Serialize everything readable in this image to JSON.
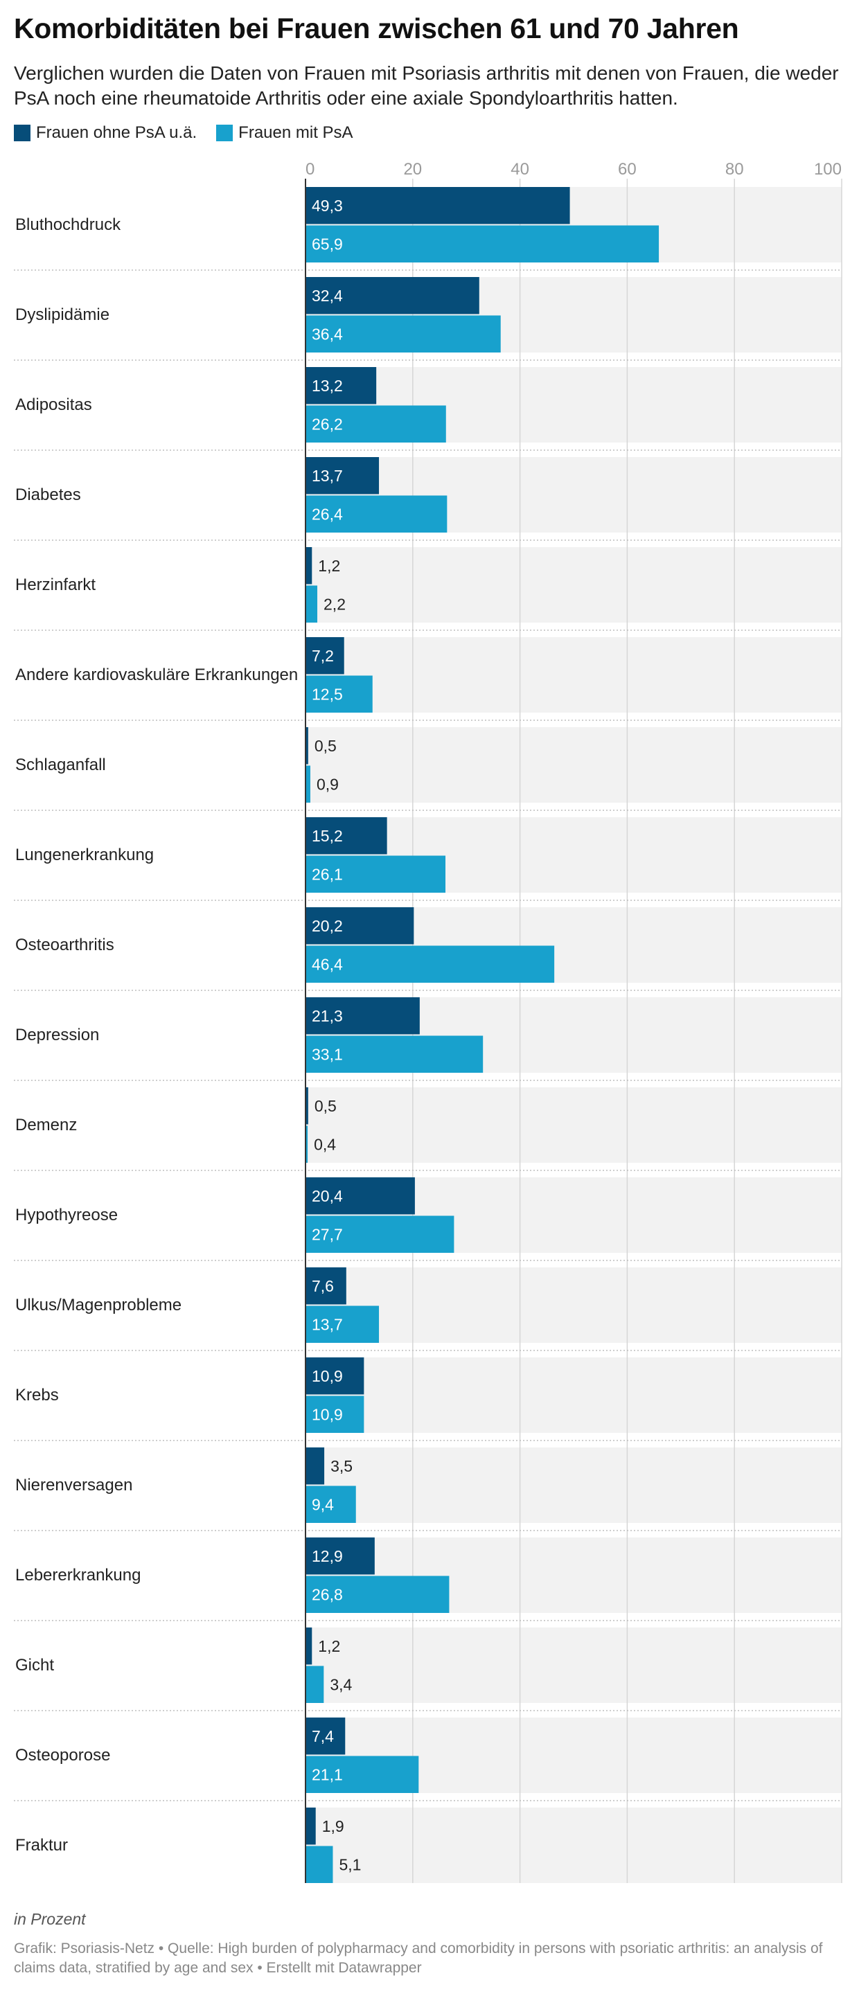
{
  "title": "Komorbiditäten bei Frauen zwischen 61 und 70 Jahren",
  "subtitle": "Verglichen wurden die Daten von Frauen mit Psoriasis arthritis mit denen von Frauen, die weder PsA noch eine rheumatoide Arthritis oder eine axiale Spondyloarthritis hatten.",
  "note": "in Prozent",
  "footer": "Grafik: Psoriasis-Netz • Quelle: High burden of polypharmacy and comorbidity in persons with psoriatic arthritis: an analysis of claims data, stratified by age and sex • Erstellt mit Datawrapper",
  "colors": {
    "series1": "#064d79",
    "series2": "#18a1cd",
    "row_background": "#f2f2f2",
    "grid": "#d6d6d6"
  },
  "chart_data": {
    "type": "bar",
    "orientation": "horizontal",
    "xlim": [
      0,
      100
    ],
    "xticks": [
      "0",
      "20",
      "40",
      "60",
      "80",
      "100"
    ],
    "grid": true,
    "legend_position": "top-left",
    "categories": [
      "Bluthochdruck",
      "Dyslipidämie",
      "Adipositas",
      "Diabetes",
      "Herzinfarkt",
      "Andere kardiovaskuläre Erkrankungen",
      "Schlaganfall",
      "Lungenerkrankung",
      "Osteoarthritis",
      "Depression",
      "Demenz",
      "Hypothyreose",
      "Ulkus/Magenprobleme",
      "Krebs",
      "Nierenversagen",
      "Lebererkrankung",
      "Gicht",
      "Osteoporose",
      "Fraktur"
    ],
    "series": [
      {
        "name": "Frauen ohne PsA u.ä.",
        "values": [
          49.3,
          32.4,
          13.2,
          13.7,
          1.2,
          7.2,
          0.5,
          15.2,
          20.2,
          21.3,
          0.5,
          20.4,
          7.6,
          10.9,
          3.5,
          12.9,
          1.2,
          7.4,
          1.9
        ],
        "labels": [
          "49,3",
          "32,4",
          "13,2",
          "13,7",
          "1,2",
          "7,2",
          "0,5",
          "15,2",
          "20,2",
          "21,3",
          "0,5",
          "20,4",
          "7,6",
          "10,9",
          "3,5",
          "12,9",
          "1,2",
          "7,4",
          "1,9"
        ]
      },
      {
        "name": "Frauen mit PsA",
        "values": [
          65.9,
          36.4,
          26.2,
          26.4,
          2.2,
          12.5,
          0.9,
          26.1,
          46.4,
          33.1,
          0.4,
          27.7,
          13.7,
          10.9,
          9.4,
          26.8,
          3.4,
          21.1,
          5.1
        ],
        "labels": [
          "65,9",
          "36,4",
          "26,2",
          "26,4",
          "2,2",
          "12,5",
          "0,9",
          "26,1",
          "46,4",
          "33,1",
          "0,4",
          "27,7",
          "13,7",
          "10,9",
          "9,4",
          "26,8",
          "3,4",
          "21,1",
          "5,1"
        ]
      }
    ]
  }
}
